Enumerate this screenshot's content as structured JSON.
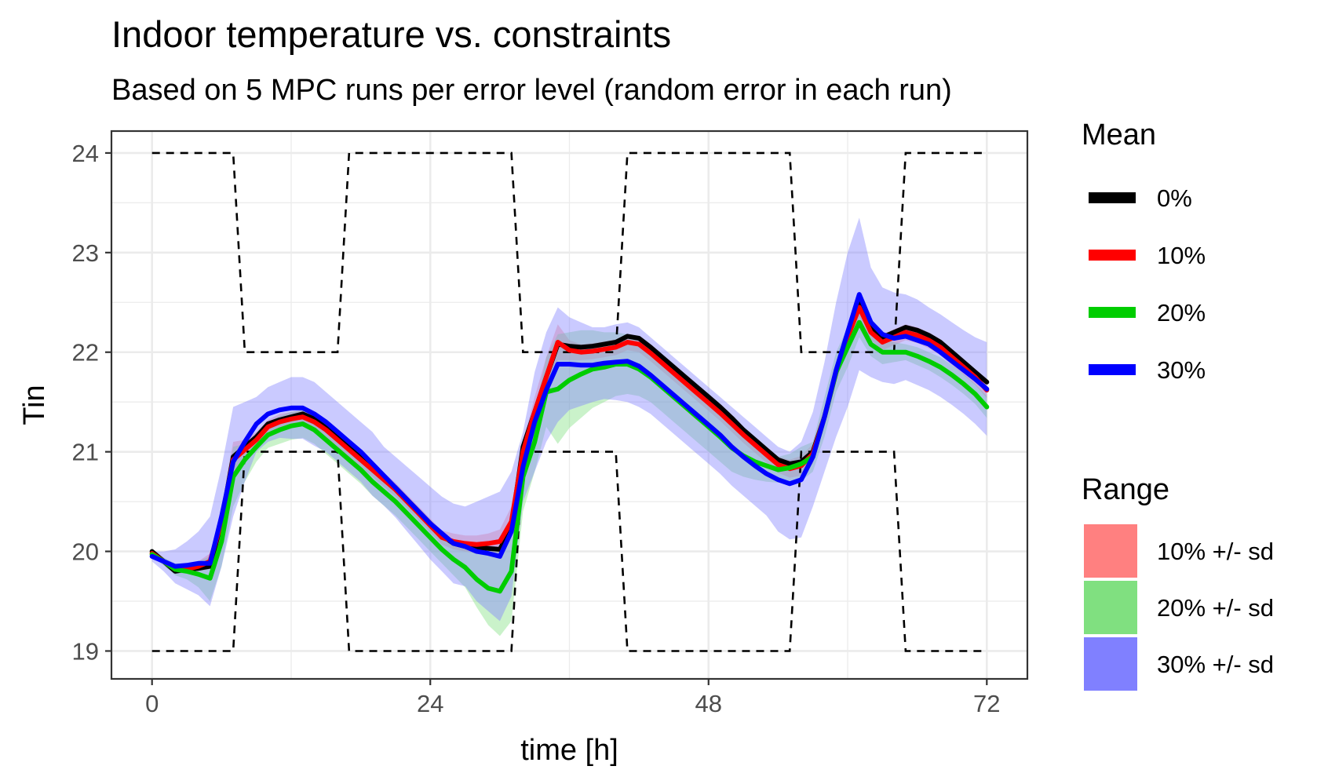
{
  "chart_data": {
    "type": "line",
    "title": "Indoor temperature vs. constraints",
    "subtitle": "Based on 5 MPC runs per error level (random error in each run)",
    "xlabel": "time [h]",
    "ylabel": "Tin",
    "xlim": [
      -3.5,
      75.5
    ],
    "ylim": [
      18.72,
      24.22
    ],
    "xticks": [
      0,
      24,
      48,
      72
    ],
    "xtick_labels": [
      "0",
      "24",
      "48",
      "72"
    ],
    "yticks": [
      19,
      20,
      21,
      22,
      23,
      24
    ],
    "ytick_labels": [
      "19",
      "20",
      "21",
      "22",
      "23",
      "24"
    ],
    "grid": true,
    "legend_position": "right",
    "x": [
      0,
      1,
      2,
      3,
      4,
      5,
      6,
      7,
      8,
      9,
      10,
      11,
      12,
      13,
      14,
      15,
      16,
      17,
      18,
      19,
      20,
      21,
      22,
      23,
      24,
      25,
      26,
      27,
      28,
      29,
      30,
      31,
      32,
      33,
      34,
      35,
      36,
      37,
      38,
      39,
      40,
      41,
      42,
      43,
      44,
      45,
      46,
      47,
      48,
      49,
      50,
      51,
      52,
      53,
      54,
      55,
      56,
      57,
      58,
      59,
      60,
      61,
      62,
      63,
      64,
      65,
      66,
      67,
      68,
      69,
      70,
      71,
      72
    ],
    "series": [
      {
        "name": "0%",
        "color": "#000000",
        "values": [
          20.0,
          19.9,
          19.8,
          19.82,
          19.83,
          19.85,
          20.3,
          20.95,
          21.05,
          21.15,
          21.28,
          21.32,
          21.35,
          21.38,
          21.33,
          21.24,
          21.14,
          21.04,
          20.94,
          20.84,
          20.74,
          20.64,
          20.52,
          20.4,
          20.28,
          20.16,
          20.08,
          20.05,
          20.04,
          20.03,
          20.02,
          20.25,
          21.05,
          21.4,
          21.75,
          22.08,
          22.06,
          22.05,
          22.06,
          22.08,
          22.1,
          22.16,
          22.14,
          22.05,
          21.95,
          21.85,
          21.75,
          21.65,
          21.55,
          21.45,
          21.34,
          21.22,
          21.12,
          21.02,
          20.92,
          20.88,
          20.9,
          21.0,
          21.35,
          21.8,
          22.15,
          22.55,
          22.25,
          22.15,
          22.2,
          22.25,
          22.22,
          22.17,
          22.1,
          22.0,
          21.9,
          21.8,
          21.7
        ]
      },
      {
        "name": "10%",
        "color": "#ff0000",
        "values": [
          19.98,
          19.9,
          19.82,
          19.82,
          19.85,
          19.9,
          20.3,
          20.92,
          21.02,
          21.12,
          21.25,
          21.3,
          21.33,
          21.35,
          21.3,
          21.22,
          21.12,
          21.02,
          20.92,
          20.82,
          20.72,
          20.62,
          20.5,
          20.38,
          20.26,
          20.14,
          20.1,
          20.08,
          20.07,
          20.08,
          20.1,
          20.3,
          21.0,
          21.4,
          21.75,
          22.1,
          22.02,
          22.0,
          22.01,
          22.03,
          22.05,
          22.1,
          22.08,
          21.99,
          21.89,
          21.79,
          21.69,
          21.59,
          21.49,
          21.39,
          21.28,
          21.17,
          21.07,
          20.97,
          20.87,
          20.83,
          20.86,
          20.98,
          21.35,
          21.8,
          22.15,
          22.45,
          22.2,
          22.1,
          22.15,
          22.2,
          22.17,
          22.12,
          22.05,
          21.95,
          21.85,
          21.75,
          21.62
        ]
      },
      {
        "name": "20%",
        "color": "#00cd00",
        "values": [
          19.97,
          19.9,
          19.82,
          19.8,
          19.77,
          19.73,
          20.1,
          20.75,
          20.92,
          21.05,
          21.17,
          21.22,
          21.26,
          21.28,
          21.22,
          21.12,
          21.02,
          20.92,
          20.82,
          20.7,
          20.6,
          20.5,
          20.38,
          20.26,
          20.14,
          20.02,
          19.92,
          19.84,
          19.72,
          19.63,
          19.6,
          19.8,
          20.75,
          21.1,
          21.6,
          21.63,
          21.72,
          21.78,
          21.83,
          21.85,
          21.88,
          21.88,
          21.83,
          21.75,
          21.65,
          21.55,
          21.45,
          21.35,
          21.25,
          21.15,
          21.04,
          20.96,
          20.9,
          20.86,
          20.82,
          20.84,
          20.88,
          20.95,
          21.35,
          21.8,
          22.05,
          22.3,
          22.08,
          22.0,
          22.0,
          22.0,
          21.96,
          21.91,
          21.85,
          21.77,
          21.68,
          21.58,
          21.45
        ]
      },
      {
        "name": "30%",
        "color": "#0000ff",
        "values": [
          19.95,
          19.9,
          19.85,
          19.86,
          19.88,
          19.88,
          20.35,
          20.9,
          21.1,
          21.28,
          21.38,
          21.42,
          21.44,
          21.44,
          21.38,
          21.3,
          21.2,
          21.1,
          21.0,
          20.88,
          20.76,
          20.64,
          20.52,
          20.4,
          20.28,
          20.18,
          20.08,
          20.05,
          20.0,
          19.98,
          19.95,
          20.2,
          20.85,
          21.3,
          21.62,
          21.88,
          21.88,
          21.87,
          21.87,
          21.89,
          21.9,
          21.91,
          21.86,
          21.77,
          21.67,
          21.57,
          21.47,
          21.37,
          21.27,
          21.17,
          21.05,
          20.95,
          20.86,
          20.78,
          20.72,
          20.68,
          20.72,
          20.95,
          21.35,
          21.82,
          22.2,
          22.58,
          22.3,
          22.18,
          22.14,
          22.16,
          22.12,
          22.08,
          22.0,
          21.91,
          21.82,
          21.73,
          21.63
        ]
      }
    ],
    "bands": [
      {
        "name": "10% +/- sd",
        "color": "#ff8080",
        "upper": [
          20.02,
          19.93,
          19.86,
          19.86,
          19.9,
          19.98,
          20.45,
          21.1,
          21.12,
          21.2,
          21.32,
          21.38,
          21.4,
          21.42,
          21.37,
          21.29,
          21.19,
          21.09,
          20.99,
          20.89,
          20.79,
          20.69,
          20.57,
          20.45,
          20.33,
          20.21,
          20.18,
          20.16,
          20.16,
          20.18,
          20.22,
          20.45,
          21.1,
          21.55,
          21.95,
          22.28,
          22.12,
          22.08,
          22.09,
          22.11,
          22.13,
          22.18,
          22.16,
          22.07,
          21.97,
          21.87,
          21.77,
          21.67,
          21.57,
          21.47,
          21.36,
          21.25,
          21.15,
          21.05,
          20.95,
          20.92,
          20.96,
          21.08,
          21.45,
          21.9,
          22.25,
          22.55,
          22.28,
          22.18,
          22.23,
          22.28,
          22.25,
          22.2,
          22.13,
          22.03,
          21.93,
          21.83,
          21.7
        ],
        "lower": [
          19.94,
          19.87,
          19.78,
          19.78,
          19.8,
          19.82,
          20.15,
          20.75,
          20.92,
          21.04,
          21.18,
          21.22,
          21.26,
          21.28,
          21.23,
          21.15,
          21.05,
          20.95,
          20.85,
          20.75,
          20.65,
          20.55,
          20.43,
          20.31,
          20.19,
          20.07,
          20.02,
          20.0,
          19.98,
          19.98,
          19.98,
          20.15,
          20.9,
          21.25,
          21.55,
          21.92,
          21.92,
          21.92,
          21.93,
          21.95,
          21.97,
          22.02,
          22.0,
          21.91,
          21.81,
          21.71,
          21.61,
          21.51,
          21.41,
          21.31,
          21.2,
          21.09,
          20.99,
          20.89,
          20.79,
          20.74,
          20.76,
          20.88,
          21.25,
          21.7,
          22.05,
          22.35,
          22.12,
          22.02,
          22.07,
          22.12,
          22.09,
          22.04,
          21.97,
          21.87,
          21.77,
          21.67,
          21.54
        ]
      },
      {
        "name": "20% +/- sd",
        "color": "#80e080",
        "upper": [
          20.0,
          19.94,
          19.88,
          19.88,
          19.9,
          19.95,
          20.35,
          21.05,
          21.08,
          21.18,
          21.3,
          21.36,
          21.4,
          21.42,
          21.36,
          21.26,
          21.16,
          21.06,
          20.96,
          20.84,
          20.74,
          20.64,
          20.52,
          20.4,
          20.28,
          20.16,
          20.08,
          20.04,
          20.0,
          20.0,
          20.05,
          20.3,
          21.0,
          21.4,
          21.95,
          22.18,
          22.2,
          22.22,
          22.22,
          22.2,
          22.2,
          22.18,
          22.1,
          22.0,
          21.9,
          21.8,
          21.7,
          21.6,
          21.5,
          21.4,
          21.28,
          21.17,
          21.08,
          21.0,
          20.95,
          20.98,
          21.05,
          21.1,
          21.55,
          22.0,
          22.25,
          22.45,
          22.2,
          22.12,
          22.1,
          22.08,
          22.05,
          22.0,
          21.95,
          21.87,
          21.78,
          21.68,
          21.56
        ],
        "lower": [
          19.94,
          19.86,
          19.76,
          19.72,
          19.64,
          19.5,
          19.85,
          20.45,
          20.7,
          20.9,
          21.04,
          21.08,
          21.12,
          21.14,
          21.08,
          20.98,
          20.88,
          20.78,
          20.68,
          20.56,
          20.46,
          20.36,
          20.24,
          20.12,
          20.0,
          19.88,
          19.76,
          19.64,
          19.44,
          19.26,
          19.15,
          19.3,
          20.4,
          20.8,
          21.25,
          21.08,
          21.24,
          21.34,
          21.44,
          21.5,
          21.56,
          21.58,
          21.56,
          21.5,
          21.4,
          21.3,
          21.2,
          21.1,
          21.0,
          20.9,
          20.8,
          20.75,
          20.72,
          20.7,
          20.69,
          20.7,
          20.71,
          20.8,
          21.15,
          21.6,
          21.85,
          22.15,
          21.96,
          21.88,
          21.9,
          21.92,
          21.87,
          21.82,
          21.75,
          21.67,
          21.58,
          21.48,
          21.34
        ]
      },
      {
        "name": "30% +/- sd",
        "color": "#8080ff",
        "upper": [
          20.0,
          20.0,
          20.02,
          20.1,
          20.2,
          20.35,
          20.85,
          21.45,
          21.5,
          21.55,
          21.65,
          21.7,
          21.75,
          21.75,
          21.7,
          21.6,
          21.5,
          21.4,
          21.3,
          21.2,
          21.05,
          20.95,
          20.85,
          20.75,
          20.65,
          20.55,
          20.48,
          20.45,
          20.5,
          20.55,
          20.6,
          20.8,
          21.2,
          21.8,
          22.2,
          22.45,
          22.35,
          22.3,
          22.25,
          22.25,
          22.28,
          22.3,
          22.25,
          22.15,
          22.05,
          21.95,
          21.85,
          21.75,
          21.65,
          21.55,
          21.45,
          21.35,
          21.25,
          21.15,
          21.05,
          21.0,
          21.1,
          21.4,
          21.9,
          22.5,
          23.0,
          23.35,
          22.85,
          22.65,
          22.6,
          22.58,
          22.53,
          22.45,
          22.38,
          22.3,
          22.22,
          22.15,
          22.1
        ],
        "lower": [
          19.9,
          19.8,
          19.68,
          19.62,
          19.56,
          19.45,
          19.85,
          20.35,
          20.7,
          21.0,
          21.1,
          21.14,
          21.13,
          21.13,
          21.06,
          21.0,
          20.9,
          20.8,
          20.7,
          20.56,
          20.46,
          20.34,
          20.2,
          20.06,
          19.92,
          19.8,
          19.68,
          19.65,
          19.5,
          19.4,
          19.3,
          19.55,
          20.5,
          20.8,
          21.1,
          21.3,
          21.42,
          21.46,
          21.5,
          21.53,
          21.52,
          21.5,
          21.45,
          21.38,
          21.28,
          21.18,
          21.08,
          20.98,
          20.88,
          20.78,
          20.66,
          20.56,
          20.46,
          20.36,
          20.2,
          20.12,
          20.14,
          20.45,
          20.8,
          21.15,
          21.45,
          21.82,
          21.75,
          21.7,
          21.68,
          21.72,
          21.67,
          21.62,
          21.55,
          21.47,
          21.38,
          21.28,
          21.16
        ]
      }
    ],
    "constraints": {
      "name": "constraints",
      "color": "#000000",
      "upper": {
        "x": [
          0,
          7,
          7.5,
          8,
          16,
          16.5,
          17,
          31,
          31.5,
          32,
          40,
          40.5,
          41,
          55,
          55.5,
          56,
          64,
          64.5,
          65,
          72
        ],
        "y": [
          24,
          24,
          23,
          22,
          22,
          23,
          24,
          24,
          23,
          22,
          22,
          23,
          24,
          24,
          23,
          22,
          22,
          23,
          24,
          24
        ]
      },
      "lower": {
        "x": [
          0,
          7,
          7.5,
          8,
          16,
          16.5,
          17,
          31,
          31.5,
          32,
          40,
          40.5,
          41,
          55,
          55.5,
          56,
          64,
          64.5,
          65,
          72
        ],
        "y": [
          19,
          19,
          20,
          21,
          21,
          20,
          19,
          19,
          20,
          21,
          21,
          20,
          19,
          19,
          20,
          21,
          21,
          20,
          19,
          19
        ]
      }
    },
    "legend": {
      "mean_title": "Mean",
      "mean_items": [
        {
          "label": "0%",
          "color": "#000000"
        },
        {
          "label": "10%",
          "color": "#ff0000"
        },
        {
          "label": "20%",
          "color": "#00cd00"
        },
        {
          "label": "30%",
          "color": "#0000ff"
        }
      ],
      "range_title": "Range",
      "range_items": [
        {
          "label": "10% +/- sd",
          "color": "#ff8080"
        },
        {
          "label": "20% +/- sd",
          "color": "#80e080"
        },
        {
          "label": "30% +/- sd",
          "color": "#8080ff"
        }
      ]
    }
  }
}
